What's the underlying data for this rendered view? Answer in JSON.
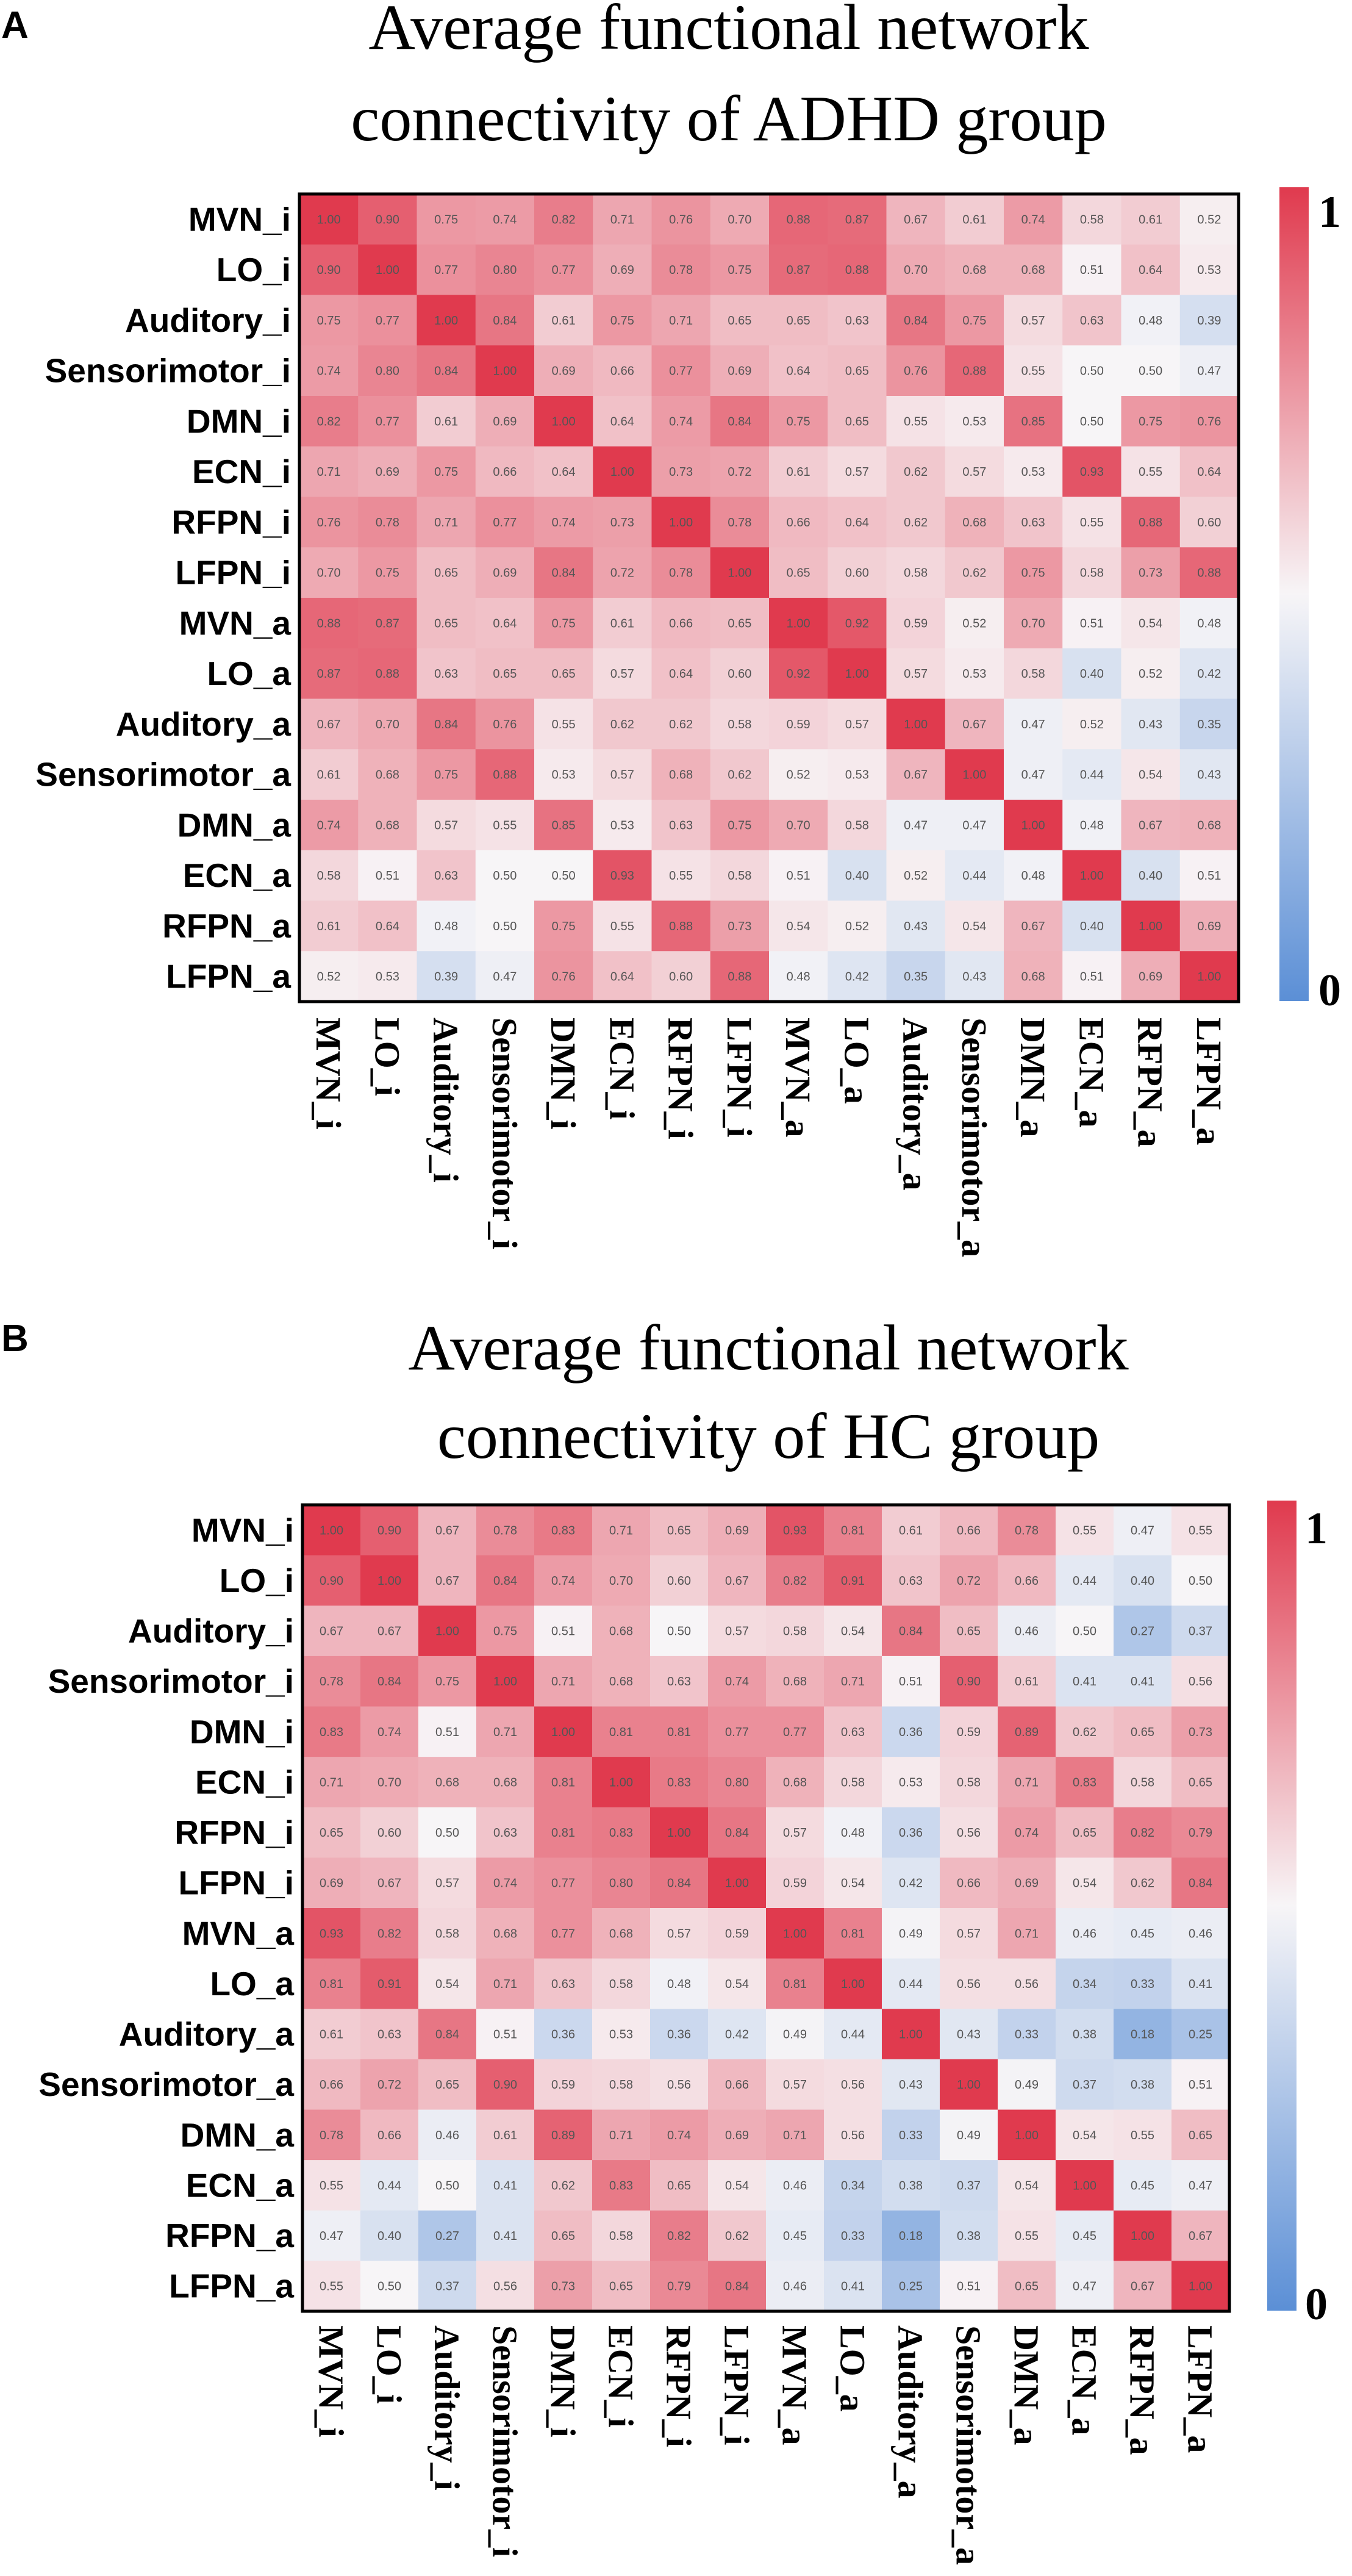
{
  "panels": [
    {
      "letter": "A",
      "title_line1": "Average functional network",
      "title_line2": "connectivity of ADHD group"
    },
    {
      "letter": "B",
      "title_line1": "Average functional network",
      "title_line2": "connectivity of HC group"
    }
  ],
  "chart_data": [
    {
      "type": "heatmap",
      "title": "Average functional network connectivity of ADHD group",
      "labels": [
        "MVN_i",
        "LO_i",
        "Auditory_i",
        "Sensorimotor_i",
        "DMN_i",
        "ECN_i",
        "RFPN_i",
        "LFPN_i",
        "MVN_a",
        "LO_a",
        "Auditory_a",
        "Sensorimotor_a",
        "DMN_a",
        "ECN_a",
        "RFPN_a",
        "LFPN_a"
      ],
      "colorbar": {
        "min_label": "0",
        "max_label": "1",
        "range": [
          0,
          1
        ],
        "low_color": "#5b8fd6",
        "mid_color": "#f7f5f7",
        "high_color": "#e03a4e"
      },
      "values": [
        [
          1.0,
          0.9,
          0.75,
          0.74,
          0.82,
          0.71,
          0.76,
          0.7,
          0.88,
          0.87,
          0.67,
          0.61,
          0.74,
          0.58,
          0.61,
          0.52
        ],
        [
          0.9,
          1.0,
          0.77,
          0.8,
          0.77,
          0.69,
          0.78,
          0.75,
          0.87,
          0.88,
          0.7,
          0.68,
          0.68,
          0.51,
          0.64,
          0.53
        ],
        [
          0.75,
          0.77,
          1.0,
          0.84,
          0.61,
          0.75,
          0.71,
          0.65,
          0.65,
          0.63,
          0.84,
          0.75,
          0.57,
          0.63,
          0.48,
          0.39
        ],
        [
          0.74,
          0.8,
          0.84,
          1.0,
          0.69,
          0.66,
          0.77,
          0.69,
          0.64,
          0.65,
          0.76,
          0.88,
          0.55,
          0.5,
          0.5,
          0.47
        ],
        [
          0.82,
          0.77,
          0.61,
          0.69,
          1.0,
          0.64,
          0.74,
          0.84,
          0.75,
          0.65,
          0.55,
          0.53,
          0.85,
          0.5,
          0.75,
          0.76
        ],
        [
          0.71,
          0.69,
          0.75,
          0.66,
          0.64,
          1.0,
          0.73,
          0.72,
          0.61,
          0.57,
          0.62,
          0.57,
          0.53,
          0.93,
          0.55,
          0.64
        ],
        [
          0.76,
          0.78,
          0.71,
          0.77,
          0.74,
          0.73,
          1.0,
          0.78,
          0.66,
          0.64,
          0.62,
          0.68,
          0.63,
          0.55,
          0.88,
          0.6
        ],
        [
          0.7,
          0.75,
          0.65,
          0.69,
          0.84,
          0.72,
          0.78,
          1.0,
          0.65,
          0.6,
          0.58,
          0.62,
          0.75,
          0.58,
          0.73,
          0.88
        ],
        [
          0.88,
          0.87,
          0.65,
          0.64,
          0.75,
          0.61,
          0.66,
          0.65,
          1.0,
          0.92,
          0.59,
          0.52,
          0.7,
          0.51,
          0.54,
          0.48
        ],
        [
          0.87,
          0.88,
          0.63,
          0.65,
          0.65,
          0.57,
          0.64,
          0.6,
          0.92,
          1.0,
          0.57,
          0.53,
          0.58,
          0.4,
          0.52,
          0.42
        ],
        [
          0.67,
          0.7,
          0.84,
          0.76,
          0.55,
          0.62,
          0.62,
          0.58,
          0.59,
          0.57,
          1.0,
          0.67,
          0.47,
          0.52,
          0.43,
          0.35
        ],
        [
          0.61,
          0.68,
          0.75,
          0.88,
          0.53,
          0.57,
          0.68,
          0.62,
          0.52,
          0.53,
          0.67,
          1.0,
          0.47,
          0.44,
          0.54,
          0.43
        ],
        [
          0.74,
          0.68,
          0.57,
          0.55,
          0.85,
          0.53,
          0.63,
          0.75,
          0.7,
          0.58,
          0.47,
          0.47,
          1.0,
          0.48,
          0.67,
          0.68
        ],
        [
          0.58,
          0.51,
          0.63,
          0.5,
          0.5,
          0.93,
          0.55,
          0.58,
          0.51,
          0.4,
          0.52,
          0.44,
          0.48,
          1.0,
          0.4,
          0.51
        ],
        [
          0.61,
          0.64,
          0.48,
          0.5,
          0.75,
          0.55,
          0.88,
          0.73,
          0.54,
          0.52,
          0.43,
          0.54,
          0.67,
          0.4,
          1.0,
          0.69
        ],
        [
          0.52,
          0.53,
          0.39,
          0.47,
          0.76,
          0.64,
          0.6,
          0.88,
          0.48,
          0.42,
          0.35,
          0.43,
          0.68,
          0.51,
          0.69,
          1.0
        ]
      ]
    },
    {
      "type": "heatmap",
      "title": "Average functional network connectivity of HC group",
      "labels": [
        "MVN_i",
        "LO_i",
        "Auditory_i",
        "Sensorimotor_i",
        "DMN_i",
        "ECN_i",
        "RFPN_i",
        "LFPN_i",
        "MVN_a",
        "LO_a",
        "Auditory_a",
        "Sensorimotor_a",
        "DMN_a",
        "ECN_a",
        "RFPN_a",
        "LFPN_a"
      ],
      "colorbar": {
        "min_label": "0",
        "max_label": "1",
        "range": [
          0,
          1
        ],
        "low_color": "#5b8fd6",
        "mid_color": "#f7f5f7",
        "high_color": "#e03a4e"
      },
      "values": [
        [
          1.0,
          0.9,
          0.67,
          0.78,
          0.83,
          0.71,
          0.65,
          0.69,
          0.93,
          0.81,
          0.61,
          0.66,
          0.78,
          0.55,
          0.47,
          0.55
        ],
        [
          0.9,
          1.0,
          0.67,
          0.84,
          0.74,
          0.7,
          0.6,
          0.67,
          0.82,
          0.91,
          0.63,
          0.72,
          0.66,
          0.44,
          0.4,
          0.5
        ],
        [
          0.67,
          0.67,
          1.0,
          0.75,
          0.51,
          0.68,
          0.5,
          0.57,
          0.58,
          0.54,
          0.84,
          0.65,
          0.46,
          0.5,
          0.27,
          0.37
        ],
        [
          0.78,
          0.84,
          0.75,
          1.0,
          0.71,
          0.68,
          0.63,
          0.74,
          0.68,
          0.71,
          0.51,
          0.9,
          0.61,
          0.41,
          0.41,
          0.56
        ],
        [
          0.83,
          0.74,
          0.51,
          0.71,
          1.0,
          0.81,
          0.81,
          0.77,
          0.77,
          0.63,
          0.36,
          0.59,
          0.89,
          0.62,
          0.65,
          0.73
        ],
        [
          0.71,
          0.7,
          0.68,
          0.68,
          0.81,
          1.0,
          0.83,
          0.8,
          0.68,
          0.58,
          0.53,
          0.58,
          0.71,
          0.83,
          0.58,
          0.65
        ],
        [
          0.65,
          0.6,
          0.5,
          0.63,
          0.81,
          0.83,
          1.0,
          0.84,
          0.57,
          0.48,
          0.36,
          0.56,
          0.74,
          0.65,
          0.82,
          0.79
        ],
        [
          0.69,
          0.67,
          0.57,
          0.74,
          0.77,
          0.8,
          0.84,
          1.0,
          0.59,
          0.54,
          0.42,
          0.66,
          0.69,
          0.54,
          0.62,
          0.84
        ],
        [
          0.93,
          0.82,
          0.58,
          0.68,
          0.77,
          0.68,
          0.57,
          0.59,
          1.0,
          0.81,
          0.49,
          0.57,
          0.71,
          0.46,
          0.45,
          0.46
        ],
        [
          0.81,
          0.91,
          0.54,
          0.71,
          0.63,
          0.58,
          0.48,
          0.54,
          0.81,
          1.0,
          0.44,
          0.56,
          0.56,
          0.34,
          0.33,
          0.41
        ],
        [
          0.61,
          0.63,
          0.84,
          0.51,
          0.36,
          0.53,
          0.36,
          0.42,
          0.49,
          0.44,
          1.0,
          0.43,
          0.33,
          0.38,
          0.18,
          0.25
        ],
        [
          0.66,
          0.72,
          0.65,
          0.9,
          0.59,
          0.58,
          0.56,
          0.66,
          0.57,
          0.56,
          0.43,
          1.0,
          0.49,
          0.37,
          0.38,
          0.51
        ],
        [
          0.78,
          0.66,
          0.46,
          0.61,
          0.89,
          0.71,
          0.74,
          0.69,
          0.71,
          0.56,
          0.33,
          0.49,
          1.0,
          0.54,
          0.55,
          0.65
        ],
        [
          0.55,
          0.44,
          0.5,
          0.41,
          0.62,
          0.83,
          0.65,
          0.54,
          0.46,
          0.34,
          0.38,
          0.37,
          0.54,
          1.0,
          0.45,
          0.47
        ],
        [
          0.47,
          0.4,
          0.27,
          0.41,
          0.65,
          0.58,
          0.82,
          0.62,
          0.45,
          0.33,
          0.18,
          0.38,
          0.55,
          0.45,
          1.0,
          0.67
        ],
        [
          0.55,
          0.5,
          0.37,
          0.56,
          0.73,
          0.65,
          0.79,
          0.84,
          0.46,
          0.41,
          0.25,
          0.51,
          0.65,
          0.47,
          0.67,
          1.0
        ]
      ]
    }
  ]
}
